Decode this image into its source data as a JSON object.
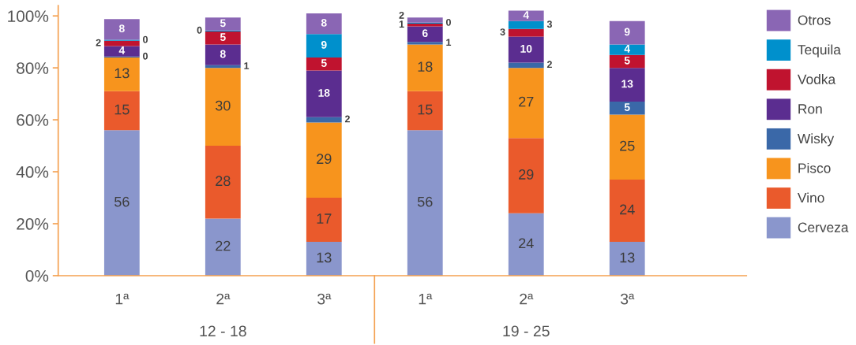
{
  "chart_data": {
    "type": "bar",
    "stacked": true,
    "categories": [
      "1ª",
      "2ª",
      "3ª",
      "1ª",
      "2ª",
      "3ª"
    ],
    "series": [
      {
        "name": "Cerveza",
        "color": "#8a96cc",
        "values": [
          56,
          22,
          13,
          56,
          24,
          13
        ],
        "value_labels": [
          "56",
          "22",
          "13",
          "56",
          "24",
          "13"
        ]
      },
      {
        "name": "Vino",
        "color": "#ea5a2c",
        "values": [
          15,
          28,
          17,
          15,
          29,
          24
        ],
        "value_labels": [
          "15",
          "28",
          "17",
          "15",
          "29",
          "24"
        ]
      },
      {
        "name": "Pisco",
        "color": "#f7941d",
        "values": [
          13,
          30,
          29,
          18,
          27,
          25
        ],
        "value_labels": [
          "13",
          "30",
          "29",
          "18",
          "27",
          "25"
        ]
      },
      {
        "name": "Wisky",
        "color": "#3a68a8",
        "values": [
          0.4,
          1,
          2,
          1,
          2,
          5
        ],
        "value_labels": [
          "0",
          "1",
          "2",
          "1",
          "2",
          "5"
        ]
      },
      {
        "name": "Ron",
        "color": "#5b2d90",
        "values": [
          4,
          8,
          18,
          6,
          10,
          13
        ],
        "value_labels": [
          "4",
          "8",
          "18",
          "6",
          "10",
          "13"
        ]
      },
      {
        "name": "Vodka",
        "color": "#c0132f",
        "values": [
          2,
          5,
          5,
          1,
          3,
          5
        ],
        "value_labels": [
          "2",
          "5",
          "5",
          "1",
          "3",
          "5"
        ]
      },
      {
        "name": "Tequila",
        "color": "#0090cc",
        "values": [
          0.4,
          0.4,
          9,
          0.4,
          3,
          4
        ],
        "value_labels": [
          "0",
          "0",
          "9",
          "0",
          "3",
          "4"
        ]
      },
      {
        "name": "Otros",
        "color": "#8a66b4",
        "values": [
          8,
          5,
          8,
          2,
          4,
          9
        ],
        "value_labels": [
          "8",
          "5",
          "8",
          "2",
          "4",
          "9"
        ]
      }
    ],
    "ylim": [
      0,
      104
    ],
    "yticks": [
      {
        "value": 0,
        "label": "0%"
      },
      {
        "value": 20,
        "label": "20%"
      },
      {
        "value": 40,
        "label": "40%"
      },
      {
        "value": 60,
        "label": "60%"
      },
      {
        "value": 80,
        "label": "80%"
      },
      {
        "value": 100,
        "label": "100%"
      }
    ],
    "legend": "right",
    "annotations": [
      "12 - 18",
      "19 - 25"
    ]
  }
}
